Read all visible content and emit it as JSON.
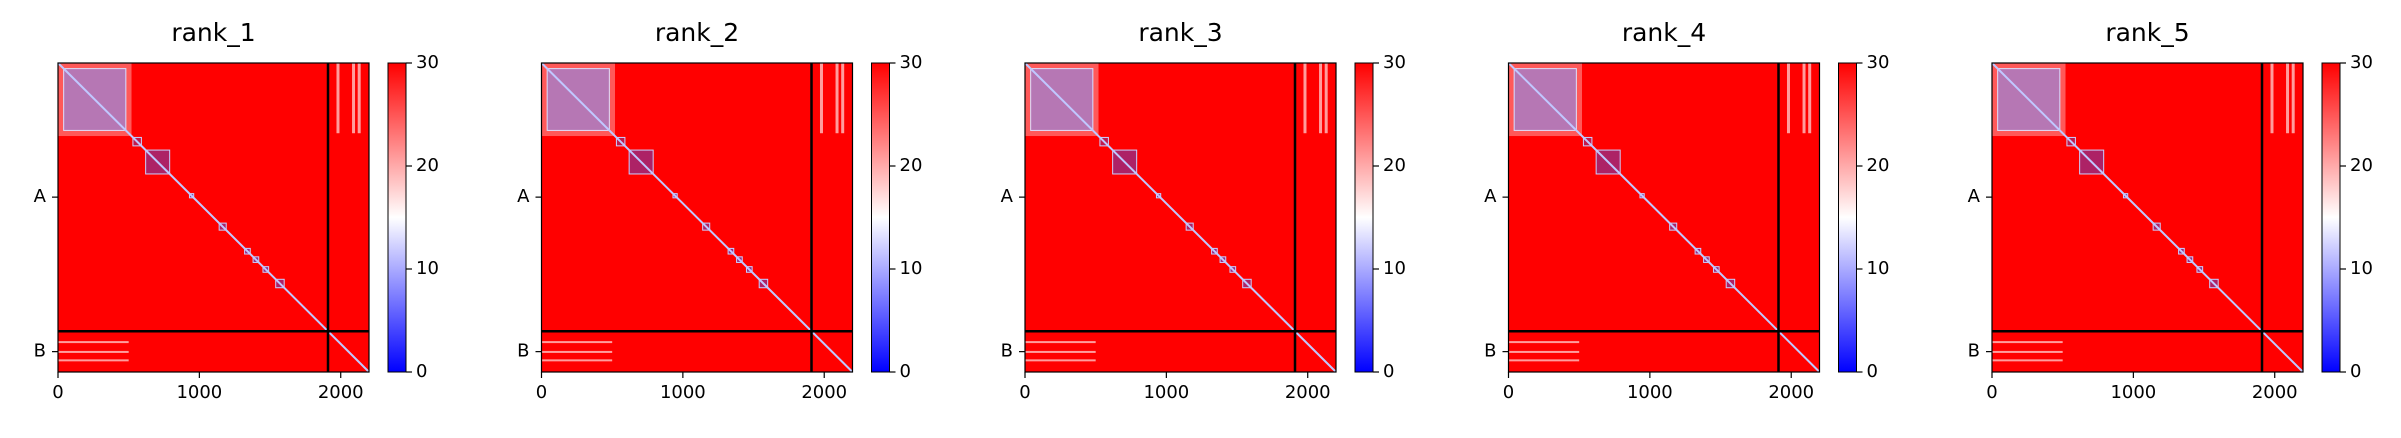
{
  "chart_data": [
    {
      "type": "heatmap",
      "title": "rank_1",
      "xlim": [
        0,
        2200
      ],
      "xticks": [
        0,
        1000,
        2000
      ],
      "ylim": [
        2200,
        0
      ],
      "yticks": [
        {
          "value": 955,
          "label": "A"
        },
        {
          "value": 2055,
          "label": "B"
        }
      ],
      "clim": [
        0,
        30
      ],
      "cticks": [
        0,
        10,
        20,
        30
      ],
      "chain_boundary": 1910
    },
    {
      "type": "heatmap",
      "title": "rank_2",
      "xlim": [
        0,
        2200
      ],
      "xticks": [
        0,
        1000,
        2000
      ],
      "ylim": [
        2200,
        0
      ],
      "yticks": [
        {
          "value": 955,
          "label": "A"
        },
        {
          "value": 2055,
          "label": "B"
        }
      ],
      "clim": [
        0,
        30
      ],
      "cticks": [
        0,
        10,
        20,
        30
      ],
      "chain_boundary": 1910
    },
    {
      "type": "heatmap",
      "title": "rank_3",
      "xlim": [
        0,
        2200
      ],
      "xticks": [
        0,
        1000,
        2000
      ],
      "ylim": [
        2200,
        0
      ],
      "yticks": [
        {
          "value": 955,
          "label": "A"
        },
        {
          "value": 2055,
          "label": "B"
        }
      ],
      "clim": [
        0,
        30
      ],
      "cticks": [
        0,
        10,
        20,
        30
      ],
      "chain_boundary": 1910
    },
    {
      "type": "heatmap",
      "title": "rank_4",
      "xlim": [
        0,
        2200
      ],
      "xticks": [
        0,
        1000,
        2000
      ],
      "ylim": [
        2200,
        0
      ],
      "yticks": [
        {
          "value": 955,
          "label": "A"
        },
        {
          "value": 2055,
          "label": "B"
        }
      ],
      "clim": [
        0,
        30
      ],
      "cticks": [
        0,
        10,
        20,
        30
      ],
      "chain_boundary": 1910
    },
    {
      "type": "heatmap",
      "title": "rank_5",
      "xlim": [
        0,
        2200
      ],
      "xticks": [
        0,
        1000,
        2000
      ],
      "ylim": [
        2200,
        0
      ],
      "yticks": [
        {
          "value": 955,
          "label": "A"
        },
        {
          "value": 2055,
          "label": "B"
        }
      ],
      "clim": [
        0,
        30
      ],
      "cticks": [
        0,
        10,
        20,
        30
      ],
      "chain_boundary": 1910
    }
  ]
}
